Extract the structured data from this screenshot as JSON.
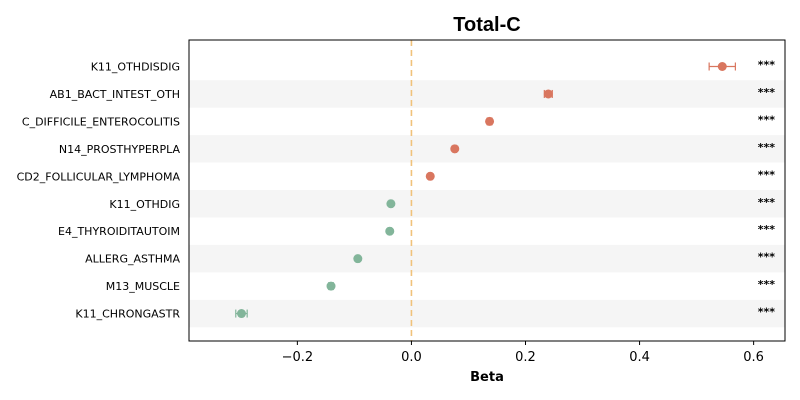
{
  "chart_data": {
    "type": "scatter",
    "title": "Total-C",
    "xlabel": "Beta",
    "ylabel": "",
    "xlim": [
      -0.39,
      0.655
    ],
    "xticks": [
      -0.2,
      0.0,
      0.2,
      0.4,
      0.6
    ],
    "xtick_labels": [
      "−0.2",
      "0.0",
      "0.2",
      "0.4",
      "0.6"
    ],
    "reference_line": {
      "x": 0.0,
      "style": "dashed",
      "color": "#f0c27b"
    },
    "alternating_row_shading": true,
    "points": [
      {
        "label": "K11_OTHDISDIG",
        "beta": 0.545,
        "ci_low": 0.522,
        "ci_high": 0.568,
        "significance": "***",
        "direction": "positive"
      },
      {
        "label": "AB1_BACT_INTEST_OTH",
        "beta": 0.24,
        "ci_low": 0.233,
        "ci_high": 0.247,
        "significance": "***",
        "direction": "positive"
      },
      {
        "label": "C_DIFFICILE_ENTEROCOLITIS",
        "beta": 0.137,
        "ci_low": 0.133,
        "ci_high": 0.141,
        "significance": "***",
        "direction": "positive"
      },
      {
        "label": "N14_PROSTHYPERPLA",
        "beta": 0.076,
        "ci_low": 0.073,
        "ci_high": 0.079,
        "significance": "***",
        "direction": "positive"
      },
      {
        "label": "CD2_FOLLICULAR_LYMPHOMA",
        "beta": 0.033,
        "ci_low": 0.03,
        "ci_high": 0.036,
        "significance": "***",
        "direction": "positive"
      },
      {
        "label": "K11_OTHDIG",
        "beta": -0.036,
        "ci_low": -0.039,
        "ci_high": -0.033,
        "significance": "***",
        "direction": "negative"
      },
      {
        "label": "E4_THYROIDITAUTOIM",
        "beta": -0.038,
        "ci_low": -0.041,
        "ci_high": -0.035,
        "significance": "***",
        "direction": "negative"
      },
      {
        "label": "ALLERG_ASTHMA",
        "beta": -0.094,
        "ci_low": -0.097,
        "ci_high": -0.091,
        "significance": "***",
        "direction": "negative"
      },
      {
        "label": "M13_MUSCLE",
        "beta": -0.141,
        "ci_low": -0.145,
        "ci_high": -0.137,
        "significance": "***",
        "direction": "negative"
      },
      {
        "label": "K11_CHRONGASTR",
        "beta": -0.298,
        "ci_low": -0.308,
        "ci_high": -0.288,
        "significance": "***",
        "direction": "negative"
      }
    ],
    "colors": {
      "positive": "#d9765f",
      "negative": "#82b59a",
      "row_shade": "#f5f5f5"
    },
    "grid": false,
    "legend": "none"
  }
}
